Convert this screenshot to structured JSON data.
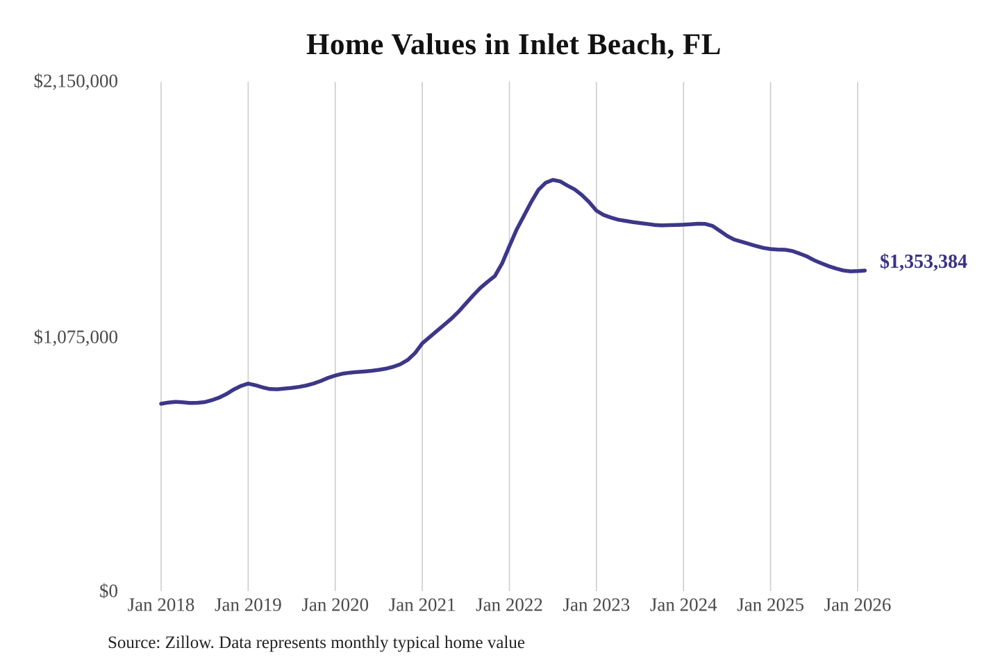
{
  "chart_data": {
    "type": "line",
    "title": "Home Values in Inlet Beach, FL",
    "source_note": "Source: Zillow. Data represents monthly typical home value",
    "end_label": "$1,353,384",
    "latest_value": 1353384,
    "xlabel": "",
    "ylabel": "",
    "ylim": [
      0,
      2150000
    ],
    "grid": "vertical-only",
    "legend": "none",
    "line_color": "#3d3789",
    "gridline_color": "#cccccc",
    "y_ticks": [
      {
        "value": 0,
        "label": "$0"
      },
      {
        "value": 1075000,
        "label": "$1,075,000"
      },
      {
        "value": 2150000,
        "label": "$2,150,000"
      }
    ],
    "x_ticks": [
      "Jan 2018",
      "Jan 2019",
      "Jan 2020",
      "Jan 2021",
      "Jan 2022",
      "Jan 2023",
      "Jan 2024",
      "Jan 2025",
      "Jan 2026"
    ],
    "series": [
      {
        "name": "Monthly typical home value",
        "x": [
          "2018-01",
          "2018-02",
          "2018-03",
          "2018-04",
          "2018-05",
          "2018-06",
          "2018-07",
          "2018-08",
          "2018-09",
          "2018-10",
          "2018-11",
          "2018-12",
          "2019-01",
          "2019-02",
          "2019-03",
          "2019-04",
          "2019-05",
          "2019-06",
          "2019-07",
          "2019-08",
          "2019-09",
          "2019-10",
          "2019-11",
          "2019-12",
          "2020-01",
          "2020-02",
          "2020-03",
          "2020-04",
          "2020-05",
          "2020-06",
          "2020-07",
          "2020-08",
          "2020-09",
          "2020-10",
          "2020-11",
          "2020-12",
          "2021-01",
          "2021-02",
          "2021-03",
          "2021-04",
          "2021-05",
          "2021-06",
          "2021-07",
          "2021-08",
          "2021-09",
          "2021-10",
          "2021-11",
          "2021-12",
          "2022-01",
          "2022-02",
          "2022-03",
          "2022-04",
          "2022-05",
          "2022-06",
          "2022-07",
          "2022-08",
          "2022-09",
          "2022-10",
          "2022-11",
          "2022-12",
          "2023-01",
          "2023-02",
          "2023-03",
          "2023-04",
          "2023-05",
          "2023-06",
          "2023-07",
          "2023-08",
          "2023-09",
          "2023-10",
          "2023-11",
          "2023-12",
          "2024-01",
          "2024-02",
          "2024-03",
          "2024-04",
          "2024-05",
          "2024-06",
          "2024-07",
          "2024-08",
          "2024-09",
          "2024-10",
          "2024-11",
          "2024-12",
          "2025-01",
          "2025-02",
          "2025-03",
          "2025-04",
          "2025-05",
          "2025-06",
          "2025-07",
          "2025-08",
          "2025-09",
          "2025-10",
          "2025-11",
          "2025-12",
          "2026-01",
          "2026-02"
        ],
        "values": [
          791000,
          796000,
          799000,
          797000,
          794000,
          795000,
          798000,
          806000,
          817000,
          832000,
          851000,
          866000,
          876000,
          869000,
          860000,
          853000,
          852000,
          855000,
          858000,
          862000,
          868000,
          876000,
          887000,
          900000,
          910000,
          918000,
          922000,
          925000,
          927000,
          930000,
          934000,
          939000,
          947000,
          958000,
          976000,
          1005000,
          1046000,
          1072000,
          1098000,
          1124000,
          1150000,
          1180000,
          1214000,
          1248000,
          1280000,
          1306000,
          1330000,
          1384000,
          1456000,
          1526000,
          1584000,
          1642000,
          1694000,
          1724000,
          1736000,
          1730000,
          1712000,
          1696000,
          1672000,
          1642000,
          1606000,
          1588000,
          1577000,
          1568000,
          1563000,
          1558000,
          1554000,
          1550000,
          1546000,
          1544000,
          1545000,
          1546000,
          1547000,
          1549000,
          1551000,
          1550000,
          1542000,
          1521000,
          1500000,
          1484000,
          1475000,
          1466000,
          1457000,
          1449000,
          1444000,
          1442000,
          1441000,
          1436000,
          1425000,
          1413000,
          1397000,
          1384000,
          1372000,
          1362000,
          1354000,
          1350000,
          1351000,
          1353384
        ]
      }
    ]
  }
}
